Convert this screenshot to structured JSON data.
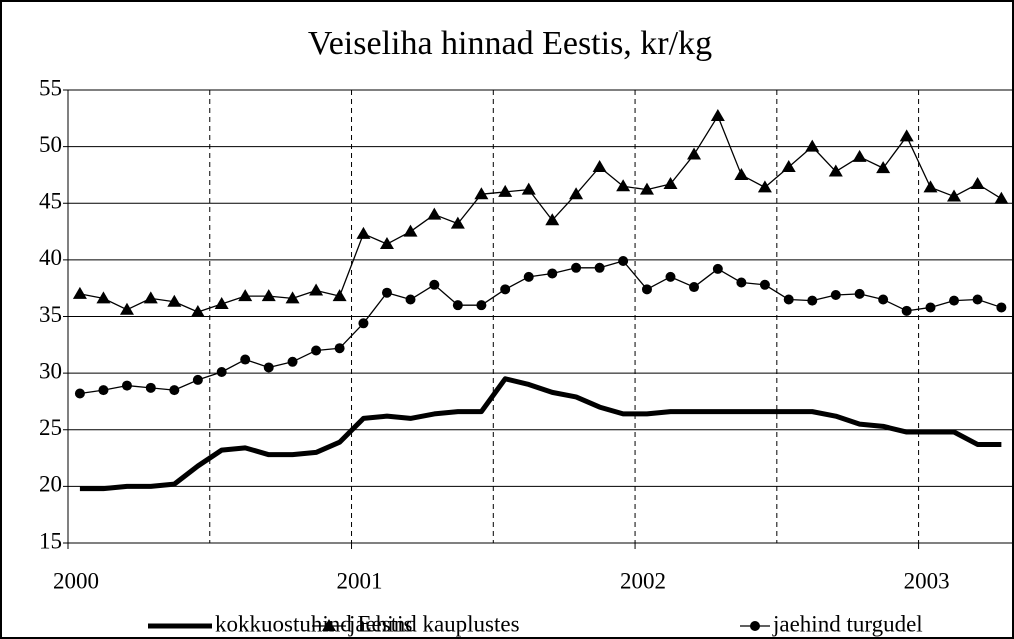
{
  "chart_data": {
    "type": "line",
    "title": "Veiseliha hinnad Eestis, kr/kg",
    "x": [
      2000.042,
      2000.125,
      2000.208,
      2000.292,
      2000.375,
      2000.458,
      2000.542,
      2000.625,
      2000.708,
      2000.792,
      2000.875,
      2000.958,
      2001.042,
      2001.125,
      2001.208,
      2001.292,
      2001.375,
      2001.458,
      2001.542,
      2001.625,
      2001.708,
      2001.792,
      2001.875,
      2001.958,
      2002.042,
      2002.125,
      2002.208,
      2002.292,
      2002.375,
      2002.458,
      2002.542,
      2002.625,
      2002.708,
      2002.792,
      2002.875,
      2002.958,
      2003.042,
      2003.125,
      2003.208,
      2003.292
    ],
    "series": [
      {
        "name": "kokkuostuhind Eestis",
        "color": "#000000",
        "width": 5,
        "marker": "none",
        "values": [
          19.8,
          19.8,
          20,
          20,
          20.2,
          21.8,
          23.2,
          23.4,
          22.8,
          22.8,
          23,
          23.9,
          26,
          26.2,
          26,
          26.4,
          26.6,
          26.6,
          29.5,
          29,
          28.3,
          27.9,
          27,
          26.4,
          26.4,
          26.6,
          26.6,
          26.6,
          26.6,
          26.6,
          26.6,
          26.6,
          26.2,
          25.5,
          25.3,
          24.8,
          24.8,
          24.8,
          23.7,
          23.7
        ]
      },
      {
        "name": "jaehind kauplustes",
        "color": "#000000",
        "width": 1.3,
        "marker": "triangle",
        "values": [
          37,
          36.6,
          35.6,
          36.6,
          36.3,
          35.4,
          36.1,
          36.8,
          36.8,
          36.6,
          37.3,
          36.8,
          42.3,
          41.4,
          42.5,
          44,
          43.2,
          45.8,
          46,
          46.2,
          43.5,
          45.8,
          48.2,
          46.5,
          46.2,
          46.7,
          49.3,
          52.7,
          47.5,
          46.4,
          48.2,
          50,
          47.8,
          49.1,
          48.1,
          50.9,
          46.4,
          45.6,
          46.7,
          45.4
        ]
      },
      {
        "name": "jaehind turgudel",
        "color": "#000000",
        "width": 1.3,
        "marker": "circle",
        "values": [
          28.2,
          28.5,
          28.9,
          28.7,
          28.5,
          29.4,
          30.1,
          31.2,
          30.5,
          31,
          32,
          32.2,
          34.4,
          37.1,
          36.5,
          37.8,
          36,
          36,
          37.4,
          38.5,
          38.8,
          39.3,
          39.3,
          39.9,
          37.4,
          38.5,
          37.6,
          39.2,
          38,
          37.8,
          36.5,
          36.4,
          36.9,
          37,
          36.5,
          35.5,
          35.8,
          36.4,
          36.5,
          35.8
        ]
      }
    ],
    "xlim": [
      2000,
      2003.333
    ],
    "xticks": [
      2000,
      2001,
      2002,
      2003
    ],
    "x_minor_grid": [
      2000.5,
      2001.5,
      2002.5
    ],
    "ylim": [
      15,
      55
    ],
    "yticks": [
      15,
      20,
      25,
      30,
      35,
      40,
      45,
      50,
      55
    ],
    "grid": true,
    "legend": "bottom"
  }
}
